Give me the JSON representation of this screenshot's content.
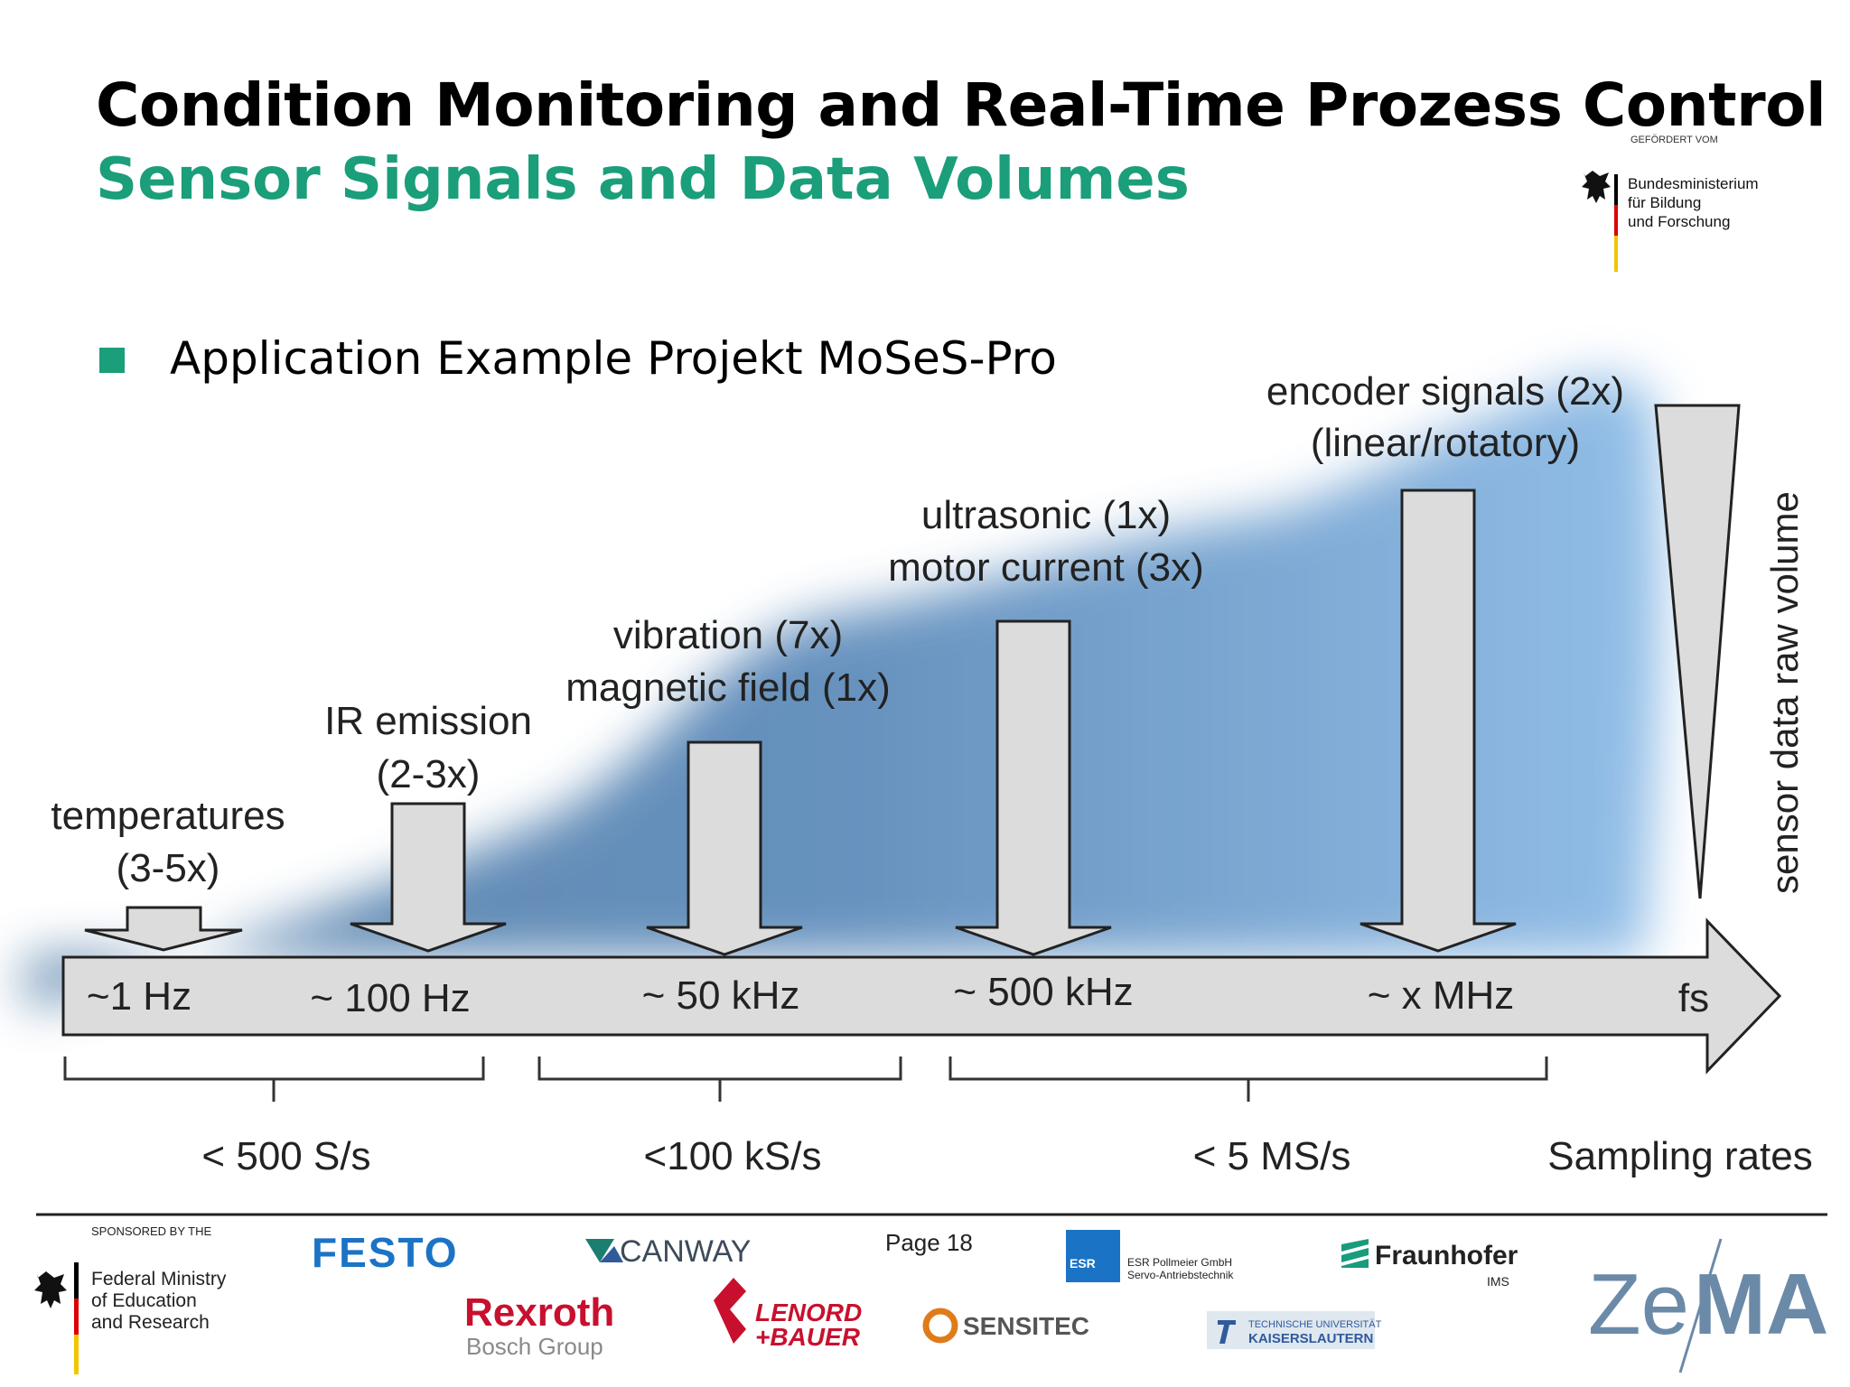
{
  "header": {
    "title": "Condition Monitoring and Real-Time Prozess Control",
    "subtitle": "Sensor Signals and Data Volumes"
  },
  "bmbf_top": {
    "gefoerdert": "GEFÖRDERT VOM",
    "line1": "Bundesministerium",
    "line2": "für Bildung",
    "line3": "und Forschung"
  },
  "bullet": {
    "text": "Application Example Projekt MoSeS-Pro"
  },
  "diagram": {
    "sensors": [
      {
        "line1": "temperatures",
        "line2": "(3-5x)"
      },
      {
        "line1": "IR emission",
        "line2": "(2-3x)"
      },
      {
        "line1": "vibration (7x)",
        "line2": "magnetic field (1x)"
      },
      {
        "line1": "ultrasonic (1x)",
        "line2": "motor current (3x)"
      },
      {
        "line1": "encoder signals (2x)",
        "line2": "(linear/rotatory)"
      }
    ],
    "frequencies": [
      "~1 Hz",
      "~ 100 Hz",
      "~ 50 kHz",
      "~ 500 kHz",
      "~ x MHz",
      "fs"
    ],
    "sampling_rates": [
      "< 500 S/s",
      "<100 kS/s",
      "< 5 MS/s"
    ],
    "sampling_label": "Sampling rates",
    "volume_label": "sensor data raw volume"
  },
  "footer": {
    "sponsored_by": "SPONSORED BY THE",
    "ministry_line1": "Federal Ministry",
    "ministry_line2": "of Education",
    "ministry_line3": "and Research",
    "page": "Page 18",
    "logos": {
      "festo": "FESTO",
      "canway": "CANWAY",
      "rexroth": "Rexroth",
      "bosch": "Bosch Group",
      "lenord1": "LENORD",
      "lenord2": "+BAUER",
      "esr_badge": "ESR",
      "esr1": "ESR Pollmeier GmbH",
      "esr2": "Servo-Antriebstechnik",
      "sensitec": "SENSITEC",
      "fraunhofer": "Fraunhofer",
      "ims": "IMS",
      "tu1": "TECHNISCHE UNIVERSITÄT",
      "tu2": "KAISERSLAUTERN",
      "zema1": "Ze",
      "zema2": "MA"
    }
  },
  "colors": {
    "accent": "#1b9e7a",
    "arrow_fill": "#dcdcdc",
    "arrow_stroke": "#222222",
    "volume_blue": "#5f93c6"
  }
}
